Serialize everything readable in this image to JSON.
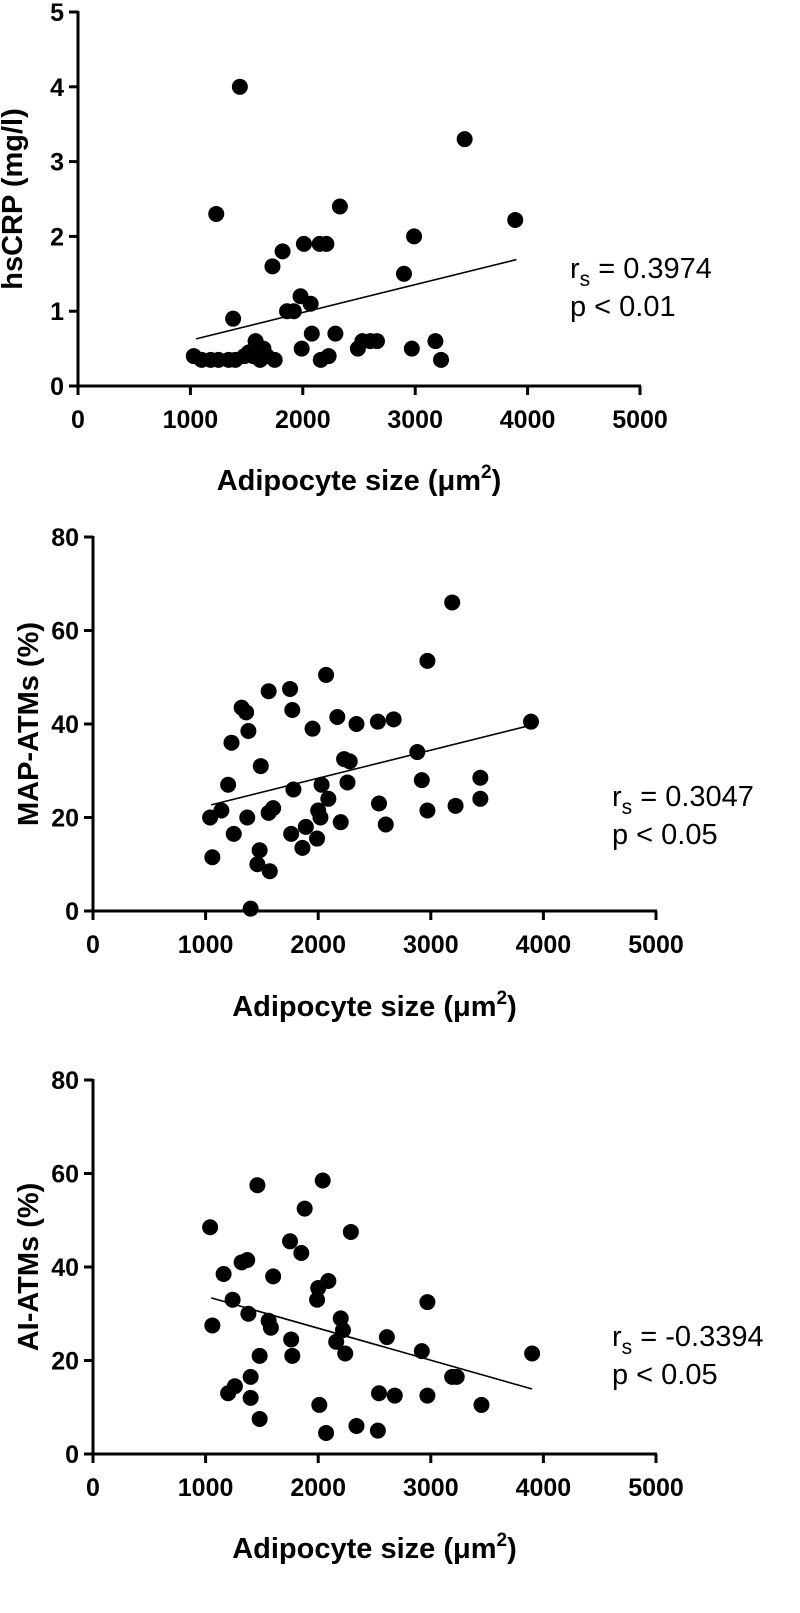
{
  "chart_data": [
    {
      "type": "scatter",
      "xlabel": "Adipocyte size (μm²)",
      "xlabel_parts": {
        "base": "Adipocyte size (",
        "mu": "μ",
        "unit": "m",
        "sup": "2",
        "close": ")"
      },
      "ylabel": "hsCRP (mg/l)",
      "xlim": [
        0,
        5000
      ],
      "ylim": [
        0,
        5
      ],
      "x_ticks": [
        "0",
        "1000",
        "2000",
        "3000",
        "4000",
        "5000"
      ],
      "y_ticks": [
        "0",
        "1",
        "2",
        "3",
        "4",
        "5"
      ],
      "annotation": {
        "r_label": "r",
        "r_sub": "s",
        "r_value": " = 0.3974",
        "p_text": "p < 0.01"
      },
      "fit_line": {
        "x": [
          1050,
          3900
        ],
        "y": [
          0.63,
          1.69
        ]
      },
      "points": [
        {
          "x": 1030,
          "y": 0.4
        },
        {
          "x": 1100,
          "y": 0.35
        },
        {
          "x": 1180,
          "y": 0.35
        },
        {
          "x": 1230,
          "y": 2.3
        },
        {
          "x": 1250,
          "y": 0.35
        },
        {
          "x": 1340,
          "y": 0.35
        },
        {
          "x": 1380,
          "y": 0.9
        },
        {
          "x": 1400,
          "y": 0.35
        },
        {
          "x": 1440,
          "y": 4.0
        },
        {
          "x": 1480,
          "y": 0.4
        },
        {
          "x": 1520,
          "y": 0.45
        },
        {
          "x": 1560,
          "y": 0.4
        },
        {
          "x": 1580,
          "y": 0.6
        },
        {
          "x": 1620,
          "y": 0.35
        },
        {
          "x": 1650,
          "y": 0.5
        },
        {
          "x": 1680,
          "y": 0.4
        },
        {
          "x": 1730,
          "y": 1.6
        },
        {
          "x": 1750,
          "y": 0.35
        },
        {
          "x": 1820,
          "y": 1.8
        },
        {
          "x": 1860,
          "y": 1.0
        },
        {
          "x": 1920,
          "y": 1.0
        },
        {
          "x": 1980,
          "y": 1.2
        },
        {
          "x": 1990,
          "y": 0.5
        },
        {
          "x": 2010,
          "y": 1.9
        },
        {
          "x": 2070,
          "y": 1.1
        },
        {
          "x": 2080,
          "y": 0.7
        },
        {
          "x": 2150,
          "y": 1.9
        },
        {
          "x": 2160,
          "y": 0.35
        },
        {
          "x": 2210,
          "y": 1.9
        },
        {
          "x": 2230,
          "y": 0.4
        },
        {
          "x": 2290,
          "y": 0.7
        },
        {
          "x": 2330,
          "y": 2.4
        },
        {
          "x": 2490,
          "y": 0.5
        },
        {
          "x": 2530,
          "y": 0.6
        },
        {
          "x": 2600,
          "y": 0.6
        },
        {
          "x": 2660,
          "y": 0.6
        },
        {
          "x": 2900,
          "y": 1.5
        },
        {
          "x": 2970,
          "y": 0.5
        },
        {
          "x": 2990,
          "y": 2.0
        },
        {
          "x": 3180,
          "y": 0.6
        },
        {
          "x": 3230,
          "y": 0.35
        },
        {
          "x": 3440,
          "y": 3.3
        },
        {
          "x": 3890,
          "y": 2.22
        }
      ]
    },
    {
      "type": "scatter",
      "xlabel": "Adipocyte size (μm²)",
      "xlabel_parts": {
        "base": "Adipocyte size (",
        "mu": "μ",
        "unit": "m",
        "sup": "2",
        "close": ")"
      },
      "ylabel": "MAP-ATMs (%)",
      "xlim": [
        0,
        5000
      ],
      "ylim": [
        0,
        80
      ],
      "x_ticks": [
        "0",
        "1000",
        "2000",
        "3000",
        "4000",
        "5000"
      ],
      "y_ticks": [
        "0",
        "20",
        "40",
        "60",
        "80"
      ],
      "annotation": {
        "r_label": "r",
        "r_sub": "s",
        "r_value": " = 0.3047",
        "p_text": "p < 0.05"
      },
      "fit_line": {
        "x": [
          1050,
          3900
        ],
        "y": [
          22.7,
          39.8
        ]
      },
      "points": [
        {
          "x": 1040,
          "y": 20
        },
        {
          "x": 1060,
          "y": 11.5
        },
        {
          "x": 1140,
          "y": 21.5
        },
        {
          "x": 1200,
          "y": 27
        },
        {
          "x": 1230,
          "y": 36
        },
        {
          "x": 1250,
          "y": 16.5
        },
        {
          "x": 1320,
          "y": 43.5
        },
        {
          "x": 1360,
          "y": 42.5
        },
        {
          "x": 1370,
          "y": 20
        },
        {
          "x": 1380,
          "y": 38.5
        },
        {
          "x": 1400,
          "y": 0.5
        },
        {
          "x": 1460,
          "y": 10
        },
        {
          "x": 1480,
          "y": 13
        },
        {
          "x": 1490,
          "y": 31
        },
        {
          "x": 1560,
          "y": 47
        },
        {
          "x": 1570,
          "y": 8.5
        },
        {
          "x": 1560,
          "y": 21
        },
        {
          "x": 1600,
          "y": 22
        },
        {
          "x": 1750,
          "y": 47.5
        },
        {
          "x": 1760,
          "y": 16.5
        },
        {
          "x": 1770,
          "y": 43
        },
        {
          "x": 1780,
          "y": 26
        },
        {
          "x": 1860,
          "y": 13.5
        },
        {
          "x": 1890,
          "y": 18
        },
        {
          "x": 1950,
          "y": 39
        },
        {
          "x": 1990,
          "y": 15.5
        },
        {
          "x": 2000,
          "y": 21.5
        },
        {
          "x": 2020,
          "y": 20
        },
        {
          "x": 2030,
          "y": 27
        },
        {
          "x": 2070,
          "y": 50.5
        },
        {
          "x": 2090,
          "y": 24
        },
        {
          "x": 2170,
          "y": 41.5
        },
        {
          "x": 2200,
          "y": 19
        },
        {
          "x": 2230,
          "y": 32.5
        },
        {
          "x": 2260,
          "y": 27.5
        },
        {
          "x": 2280,
          "y": 32
        },
        {
          "x": 2340,
          "y": 40
        },
        {
          "x": 2530,
          "y": 40.5
        },
        {
          "x": 2540,
          "y": 23
        },
        {
          "x": 2600,
          "y": 18.5
        },
        {
          "x": 2670,
          "y": 41
        },
        {
          "x": 2880,
          "y": 34
        },
        {
          "x": 2920,
          "y": 28
        },
        {
          "x": 2970,
          "y": 53.5
        },
        {
          "x": 2970,
          "y": 21.5
        },
        {
          "x": 3190,
          "y": 66
        },
        {
          "x": 3220,
          "y": 22.5
        },
        {
          "x": 3440,
          "y": 28.5
        },
        {
          "x": 3440,
          "y": 24
        },
        {
          "x": 3890,
          "y": 40.5
        }
      ]
    },
    {
      "type": "scatter",
      "xlabel": "Adipocyte size (μm²)",
      "xlabel_parts": {
        "base": "Adipocyte size (",
        "mu": "μ",
        "unit": "m",
        "sup": "2",
        "close": ")"
      },
      "ylabel": "AI-ATMs (%)",
      "xlim": [
        0,
        5000
      ],
      "ylim": [
        0,
        80
      ],
      "x_ticks": [
        "0",
        "1000",
        "2000",
        "3000",
        "4000",
        "5000"
      ],
      "y_ticks": [
        "0",
        "20",
        "40",
        "60",
        "80"
      ],
      "annotation": {
        "r_label": "r",
        "r_sub": "s",
        "r_value": " = -0.3394",
        "p_text": "p < 0.05"
      },
      "fit_line": {
        "x": [
          1050,
          3900
        ],
        "y": [
          33.4,
          13.9
        ]
      },
      "points": [
        {
          "x": 1040,
          "y": 48.5
        },
        {
          "x": 1060,
          "y": 27.5
        },
        {
          "x": 1160,
          "y": 38.5
        },
        {
          "x": 1200,
          "y": 13
        },
        {
          "x": 1240,
          "y": 33
        },
        {
          "x": 1260,
          "y": 14.5
        },
        {
          "x": 1320,
          "y": 41
        },
        {
          "x": 1370,
          "y": 41.5
        },
        {
          "x": 1380,
          "y": 30
        },
        {
          "x": 1400,
          "y": 12
        },
        {
          "x": 1400,
          "y": 16.5
        },
        {
          "x": 1460,
          "y": 57.5
        },
        {
          "x": 1480,
          "y": 21
        },
        {
          "x": 1480,
          "y": 7.5
        },
        {
          "x": 1560,
          "y": 28.5
        },
        {
          "x": 1580,
          "y": 27
        },
        {
          "x": 1600,
          "y": 38
        },
        {
          "x": 1750,
          "y": 45.5
        },
        {
          "x": 1760,
          "y": 24.5
        },
        {
          "x": 1770,
          "y": 21
        },
        {
          "x": 1850,
          "y": 43
        },
        {
          "x": 1880,
          "y": 52.5
        },
        {
          "x": 1990,
          "y": 33
        },
        {
          "x": 2000,
          "y": 35.5
        },
        {
          "x": 2010,
          "y": 10.5
        },
        {
          "x": 2040,
          "y": 58.5
        },
        {
          "x": 2070,
          "y": 4.5
        },
        {
          "x": 2090,
          "y": 37
        },
        {
          "x": 2160,
          "y": 24
        },
        {
          "x": 2200,
          "y": 29
        },
        {
          "x": 2220,
          "y": 26.5
        },
        {
          "x": 2240,
          "y": 21.5
        },
        {
          "x": 2290,
          "y": 47.5
        },
        {
          "x": 2340,
          "y": 6
        },
        {
          "x": 2530,
          "y": 5
        },
        {
          "x": 2540,
          "y": 13
        },
        {
          "x": 2610,
          "y": 25
        },
        {
          "x": 2680,
          "y": 12.5
        },
        {
          "x": 2920,
          "y": 22
        },
        {
          "x": 2970,
          "y": 32.5
        },
        {
          "x": 2970,
          "y": 12.5
        },
        {
          "x": 3190,
          "y": 16.5
        },
        {
          "x": 3230,
          "y": 16.5
        },
        {
          "x": 3450,
          "y": 10.5
        },
        {
          "x": 3900,
          "y": 21.5
        }
      ]
    }
  ]
}
